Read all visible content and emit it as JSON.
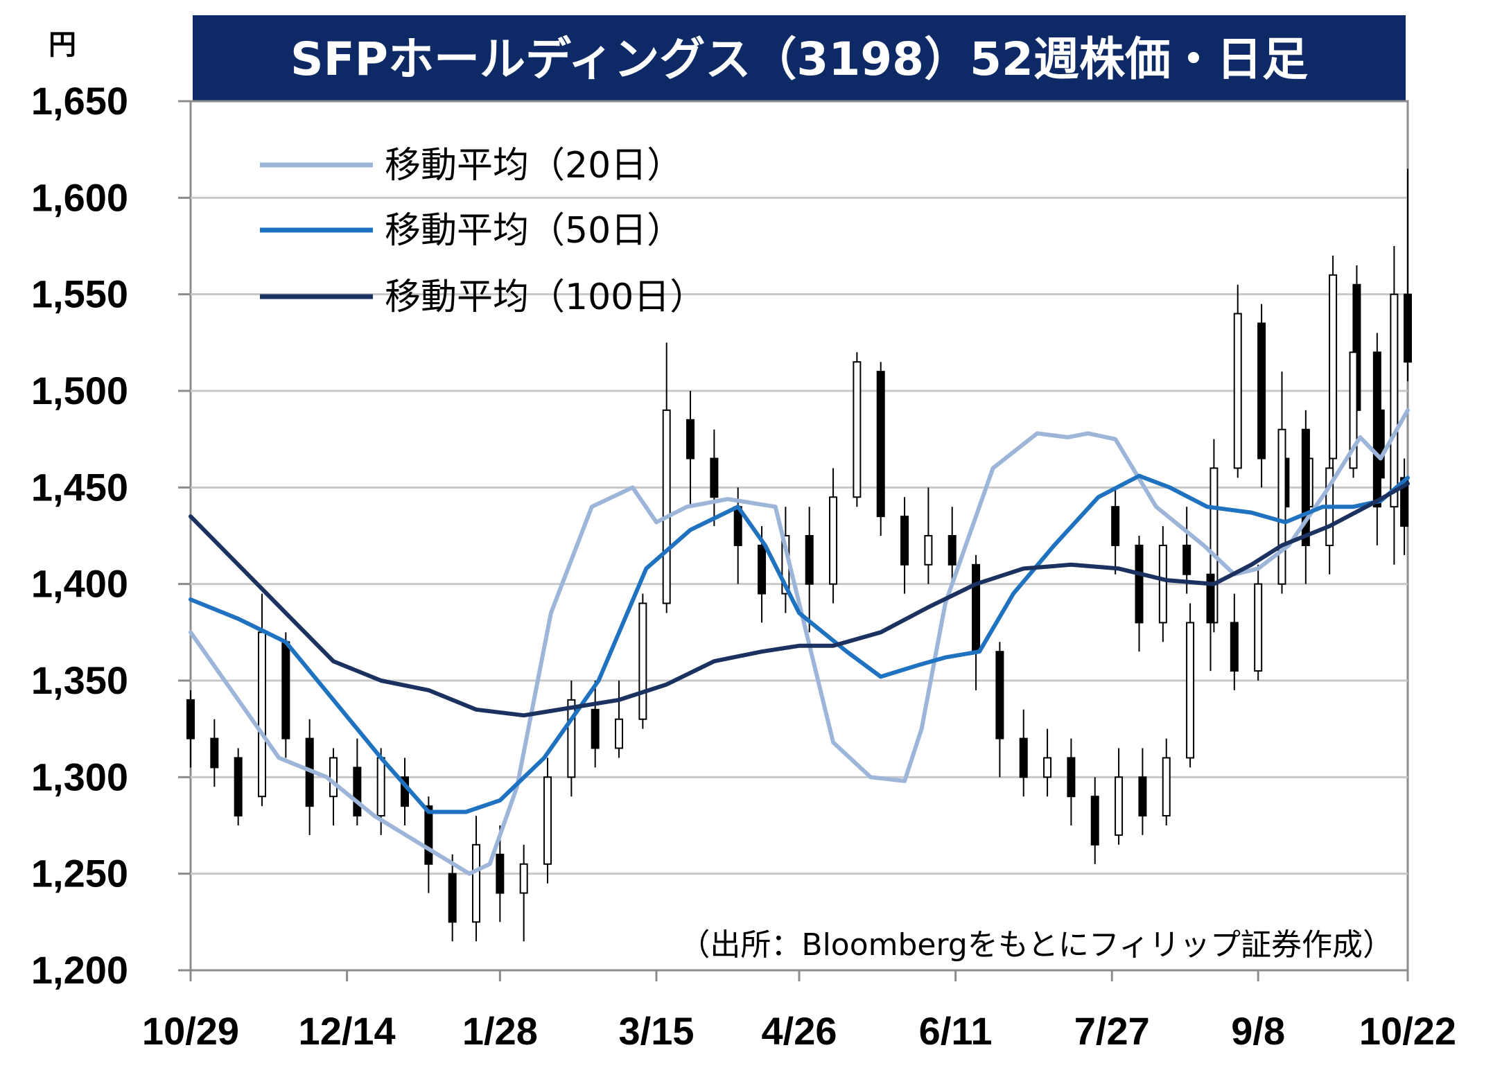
{
  "chart_data": {
    "type": "candlestick",
    "title": "SFPホールディングス（3198）52週株価・日足",
    "unit": "円",
    "ylim": [
      1200,
      1650
    ],
    "yticks": [
      1200,
      1250,
      1300,
      1350,
      1400,
      1450,
      1500,
      1550,
      1600,
      1650
    ],
    "ytick_labels": [
      "1,200",
      "1,250",
      "1,300",
      "1,350",
      "1,400",
      "1,450",
      "1,500",
      "1,550",
      "1,600",
      "1,650"
    ],
    "xlim": [
      "2020-10-29",
      "2021-10-22"
    ],
    "xticks": [
      "2020-10-29",
      "2020-12-14",
      "2021-01-28",
      "2021-03-15",
      "2021-04-26",
      "2021-06-11",
      "2021-07-27",
      "2021-09-08",
      "2021-10-22"
    ],
    "xtick_labels": [
      "10/29",
      "12/14",
      "1/28",
      "3/15",
      "4/26",
      "6/11",
      "7/27",
      "9/8",
      "10/22"
    ],
    "grid": true,
    "legend_position": "top-left",
    "source": "（出所：Bloombergをもとにフィリップ証券作成）",
    "colors": {
      "title_bg": "#0d2a66",
      "candle": "#000000",
      "grid": "#c8c8c8",
      "ma20": "#9db5d9",
      "ma50": "#1f72bf",
      "ma100": "#1b3160"
    },
    "candles": [
      [
        "2020-10-29",
        1340,
        1320,
        1345,
        1305
      ],
      [
        "2020-11-05",
        1320,
        1305,
        1330,
        1295
      ],
      [
        "2020-11-12",
        1310,
        1280,
        1315,
        1275
      ],
      [
        "2020-11-19",
        1290,
        1375,
        1395,
        1285
      ],
      [
        "2020-11-26",
        1370,
        1320,
        1375,
        1310
      ],
      [
        "2020-12-03",
        1320,
        1285,
        1330,
        1270
      ],
      [
        "2020-12-10",
        1290,
        1310,
        1315,
        1275
      ],
      [
        "2020-12-17",
        1305,
        1280,
        1320,
        1275
      ],
      [
        "2020-12-24",
        1280,
        1310,
        1315,
        1270
      ],
      [
        "2020-12-31",
        1300,
        1285,
        1310,
        1275
      ],
      [
        "2021-01-07",
        1285,
        1255,
        1290,
        1240
      ],
      [
        "2021-01-14",
        1250,
        1225,
        1260,
        1215
      ],
      [
        "2021-01-21",
        1225,
        1265,
        1280,
        1215
      ],
      [
        "2021-01-28",
        1260,
        1240,
        1275,
        1225
      ],
      [
        "2021-02-04",
        1240,
        1255,
        1265,
        1215
      ],
      [
        "2021-02-11",
        1255,
        1300,
        1310,
        1245
      ],
      [
        "2021-02-18",
        1300,
        1340,
        1350,
        1290
      ],
      [
        "2021-02-25",
        1335,
        1315,
        1350,
        1305
      ],
      [
        "2021-03-04",
        1315,
        1330,
        1350,
        1310
      ],
      [
        "2021-03-11",
        1330,
        1390,
        1395,
        1325
      ],
      [
        "2021-03-18",
        1390,
        1490,
        1525,
        1385
      ],
      [
        "2021-03-25",
        1485,
        1465,
        1500,
        1440
      ],
      [
        "2021-04-01",
        1465,
        1445,
        1480,
        1430
      ],
      [
        "2021-04-08",
        1440,
        1420,
        1450,
        1400
      ],
      [
        "2021-04-15",
        1420,
        1395,
        1430,
        1380
      ],
      [
        "2021-04-22",
        1395,
        1425,
        1440,
        1385
      ],
      [
        "2021-04-29",
        1425,
        1400,
        1440,
        1375
      ],
      [
        "2021-05-06",
        1400,
        1445,
        1460,
        1390
      ],
      [
        "2021-05-13",
        1445,
        1515,
        1520,
        1440
      ],
      [
        "2021-05-20",
        1510,
        1435,
        1515,
        1425
      ],
      [
        "2021-05-27",
        1435,
        1410,
        1445,
        1395
      ],
      [
        "2021-06-03",
        1410,
        1425,
        1450,
        1400
      ],
      [
        "2021-06-10",
        1425,
        1410,
        1440,
        1400
      ],
      [
        "2021-06-17",
        1410,
        1365,
        1415,
        1345
      ],
      [
        "2021-06-24",
        1365,
        1320,
        1370,
        1300
      ],
      [
        "2021-07-01",
        1320,
        1300,
        1335,
        1290
      ],
      [
        "2021-07-08",
        1300,
        1310,
        1325,
        1290
      ],
      [
        "2021-07-15",
        1310,
        1290,
        1320,
        1275
      ],
      [
        "2021-07-22",
        1290,
        1265,
        1300,
        1255
      ],
      [
        "2021-07-29",
        1270,
        1300,
        1315,
        1265
      ],
      [
        "2021-08-05",
        1300,
        1280,
        1315,
        1270
      ],
      [
        "2021-08-12",
        1280,
        1310,
        1320,
        1275
      ],
      [
        "2021-08-19",
        1310,
        1380,
        1390,
        1305
      ],
      [
        "2021-08-26",
        1380,
        1460,
        1475,
        1375
      ],
      [
        "2021-09-02",
        1460,
        1540,
        1555,
        1455
      ],
      [
        "2021-09-09",
        1535,
        1465,
        1545,
        1450
      ],
      [
        "2021-09-16",
        1465,
        1440,
        1475,
        1425
      ],
      [
        "2021-09-23",
        1440,
        1465,
        1480,
        1430
      ],
      [
        "2021-09-30",
        1465,
        1560,
        1570,
        1455
      ],
      [
        "2021-10-07",
        1555,
        1490,
        1565,
        1475
      ],
      [
        "2021-10-14",
        1490,
        1455,
        1500,
        1440
      ],
      [
        "2021-10-21",
        1455,
        1430,
        1465,
        1415
      ]
    ],
    "candles_tail": [
      [
        "2021-07-28",
        1440,
        1420,
        1450,
        1405
      ],
      [
        "2021-08-04",
        1420,
        1380,
        1425,
        1365
      ],
      [
        "2021-08-11",
        1380,
        1420,
        1430,
        1370
      ],
      [
        "2021-08-18",
        1420,
        1405,
        1440,
        1395
      ],
      [
        "2021-08-25",
        1405,
        1380,
        1415,
        1355
      ],
      [
        "2021-09-01",
        1380,
        1355,
        1395,
        1345
      ],
      [
        "2021-09-08",
        1355,
        1400,
        1410,
        1350
      ],
      [
        "2021-09-15",
        1400,
        1480,
        1510,
        1395
      ],
      [
        "2021-09-22",
        1480,
        1420,
        1490,
        1400
      ],
      [
        "2021-09-29",
        1420,
        1460,
        1475,
        1405
      ],
      [
        "2021-10-06",
        1460,
        1520,
        1545,
        1455
      ],
      [
        "2021-10-13",
        1520,
        1440,
        1530,
        1420
      ],
      [
        "2021-10-18",
        1440,
        1550,
        1575,
        1410
      ],
      [
        "2021-10-22",
        1550,
        1515,
        1615,
        1505
      ]
    ],
    "series": [
      {
        "name": "移動平均（20日）",
        "x": [
          "2020-10-29",
          "2020-11-10",
          "2020-11-24",
          "2020-12-08",
          "2020-12-22",
          "2021-01-05",
          "2021-01-19",
          "2021-01-25",
          "2021-02-02",
          "2021-02-12",
          "2021-02-24",
          "2021-03-08",
          "2021-03-15",
          "2021-03-24",
          "2021-04-05",
          "2021-04-19",
          "2021-04-26",
          "2021-05-06",
          "2021-05-17",
          "2021-05-27",
          "2021-06-01",
          "2021-06-08",
          "2021-06-14",
          "2021-06-22",
          "2021-07-05",
          "2021-07-14",
          "2021-07-20",
          "2021-07-28",
          "2021-08-09",
          "2021-08-23",
          "2021-09-01",
          "2021-09-08",
          "2021-09-17",
          "2021-09-28",
          "2021-10-08",
          "2021-10-14",
          "2021-10-22"
        ],
        "y": [
          1375,
          1345,
          1310,
          1300,
          1280,
          1265,
          1250,
          1255,
          1295,
          1385,
          1440,
          1450,
          1432,
          1440,
          1444,
          1440,
          1390,
          1318,
          1300,
          1298,
          1325,
          1390,
          1420,
          1460,
          1478,
          1476,
          1478,
          1475,
          1440,
          1420,
          1405,
          1408,
          1420,
          1448,
          1476,
          1465,
          1490
        ]
      },
      {
        "name": "移動平均（50日）",
        "x": [
          "2020-10-29",
          "2020-11-12",
          "2020-11-26",
          "2020-12-10",
          "2020-12-24",
          "2021-01-07",
          "2021-01-18",
          "2021-01-28",
          "2021-02-10",
          "2021-02-26",
          "2021-03-12",
          "2021-03-25",
          "2021-04-08",
          "2021-04-16",
          "2021-04-26",
          "2021-05-10",
          "2021-05-20",
          "2021-05-31",
          "2021-06-08",
          "2021-06-18",
          "2021-06-28",
          "2021-07-10",
          "2021-07-23",
          "2021-08-04",
          "2021-08-13",
          "2021-08-24",
          "2021-09-06",
          "2021-09-16",
          "2021-09-27",
          "2021-10-06",
          "2021-10-14",
          "2021-10-22"
        ],
        "y": [
          1392,
          1382,
          1370,
          1340,
          1310,
          1282,
          1282,
          1288,
          1310,
          1350,
          1408,
          1428,
          1440,
          1420,
          1385,
          1365,
          1352,
          1358,
          1362,
          1365,
          1395,
          1420,
          1445,
          1456,
          1450,
          1440,
          1437,
          1432,
          1440,
          1440,
          1443,
          1455
        ]
      },
      {
        "name": "移動平均（100日）",
        "x": [
          "2020-10-29",
          "2020-11-12",
          "2020-11-26",
          "2020-12-10",
          "2020-12-24",
          "2021-01-07",
          "2021-01-21",
          "2021-02-04",
          "2021-02-18",
          "2021-03-04",
          "2021-03-18",
          "2021-04-01",
          "2021-04-15",
          "2021-04-26",
          "2021-05-06",
          "2021-05-20",
          "2021-06-03",
          "2021-06-17",
          "2021-07-01",
          "2021-07-15",
          "2021-07-29",
          "2021-08-12",
          "2021-08-26",
          "2021-09-06",
          "2021-09-15",
          "2021-09-29",
          "2021-10-13",
          "2021-10-22"
        ],
        "y": [
          1435,
          1410,
          1385,
          1360,
          1350,
          1345,
          1335,
          1332,
          1336,
          1340,
          1348,
          1360,
          1365,
          1368,
          1368,
          1375,
          1388,
          1400,
          1408,
          1410,
          1408,
          1402,
          1400,
          1410,
          1420,
          1430,
          1443,
          1452
        ]
      }
    ]
  }
}
